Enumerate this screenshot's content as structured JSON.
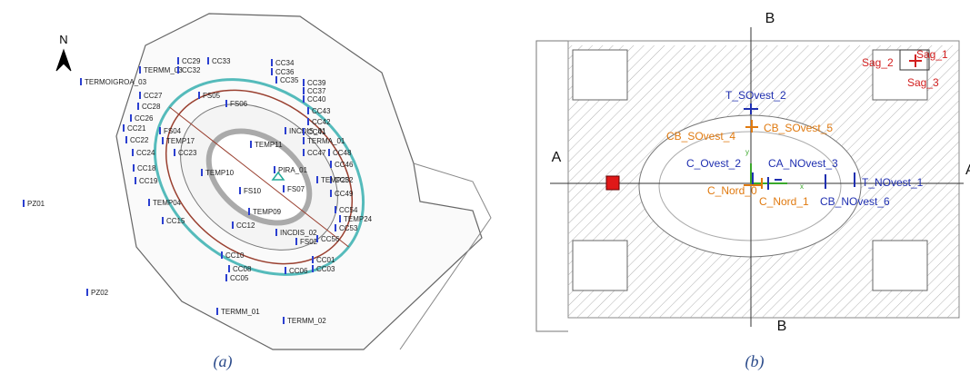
{
  "panel_a": {
    "compass": "N",
    "labels": [
      "TERMM_03",
      "CC29",
      "CC33",
      "CC34",
      "TERMOIGROA_03",
      "CC32",
      "CC36",
      "CC35",
      "CC39",
      "CC37",
      "CC27",
      "FS05",
      "CC40",
      "CC28",
      "FS06",
      "CC26",
      "CC43",
      "CC21",
      "FS04",
      "INCDIS_01",
      "CC42",
      "CC22",
      "TEMP17",
      "CC41",
      "TERMA_01",
      "TEMP11",
      "CC23",
      "CC24",
      "CC47",
      "CC48",
      "TEMP10",
      "PIRA_01",
      "CC18",
      "CC46",
      "CC52",
      "CC19",
      "TEMP23",
      "FS07",
      "FS10",
      "CC49",
      "TEMP04",
      "CC54",
      "CC15",
      "TEMP09",
      "CC12",
      "TEMP24",
      "CC53",
      "INCDIS_02",
      "CC10",
      "FS02",
      "CC56",
      "CC08",
      "CC05",
      "CC06",
      "CC01",
      "CC03",
      "TERMM_01",
      "TERMM_02",
      "PZ01",
      "PZ02"
    ],
    "caption": "(a)"
  },
  "panel_b": {
    "section_top": "B",
    "section_bottom": "B",
    "section_left": "A",
    "section_right": "A",
    "labels": [
      "Sag_2",
      "Sag_1",
      "Sag_3",
      "T_SOvest_2",
      "CB_SOvest_5",
      "CB_SOvest_4",
      "C_Ovest_2",
      "CA_NOvest_3",
      "T_NOvest_1",
      "C_Nord_0",
      "C_Nord_1",
      "CB_NOvest_6"
    ],
    "axis_y": "y",
    "axis_x": "x",
    "caption": "(b)"
  }
}
